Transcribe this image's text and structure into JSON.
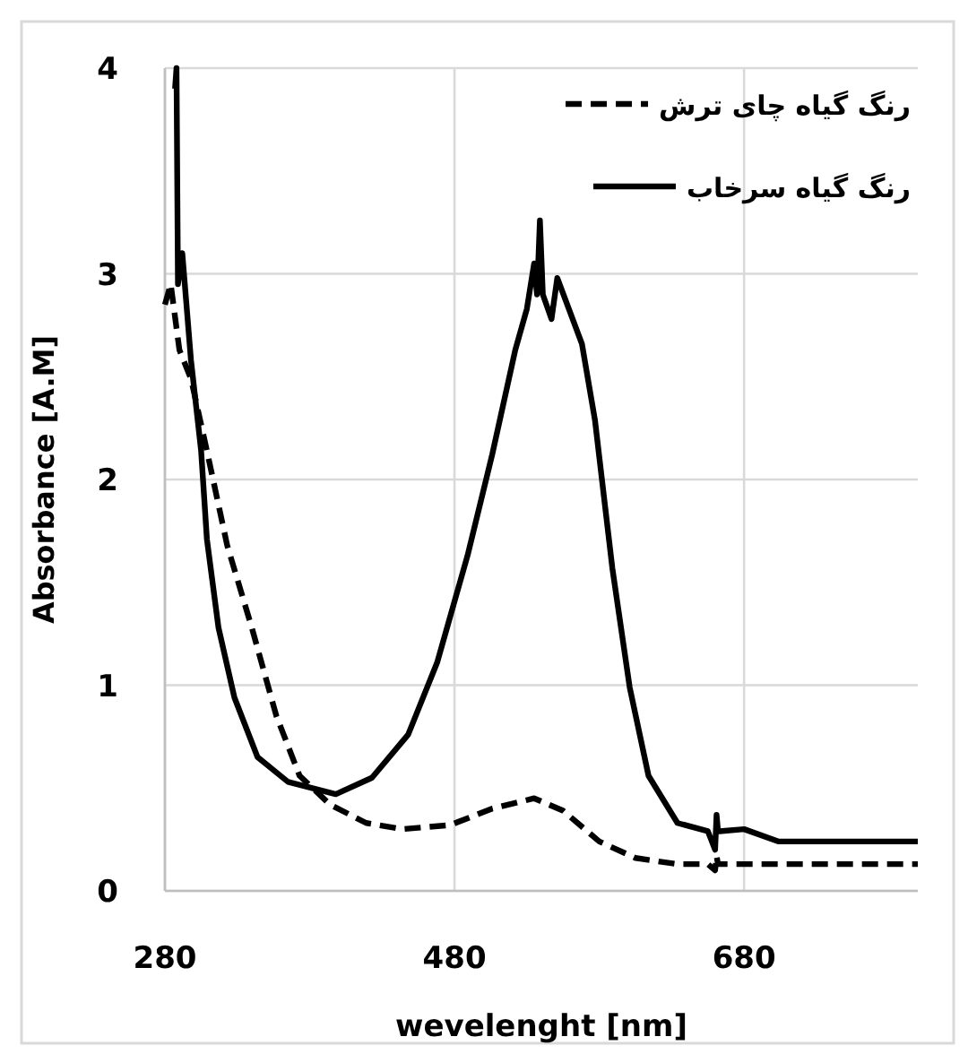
{
  "chart_data": {
    "type": "line",
    "xlabel": "wevelenght [nm]",
    "ylabel": "Absorbance [A.M]",
    "xlim": [
      280,
      800
    ],
    "ylim": [
      0,
      4
    ],
    "xticks": [
      280,
      480,
      680
    ],
    "yticks": [
      0,
      1,
      2,
      3,
      4
    ],
    "grid": true,
    "legend": "top right",
    "series": [
      {
        "name": "رنگ گیاه چای ترش",
        "color": "#000000",
        "line_style": "dashed",
        "x": [
          280,
          284,
          290,
          298,
          309,
          323,
          340,
          357,
          373,
          394,
          419,
          444,
          477,
          506,
          535,
          555,
          580,
          605,
          634,
          655,
          660,
          661,
          662,
          663,
          680,
          800
        ],
        "values": [
          2.85,
          2.95,
          2.63,
          2.49,
          2.14,
          1.68,
          1.28,
          0.85,
          0.56,
          0.42,
          0.33,
          0.3,
          0.32,
          0.4,
          0.45,
          0.39,
          0.24,
          0.16,
          0.13,
          0.13,
          0.1,
          0.17,
          0.13,
          0.13,
          0.13,
          0.13
        ]
      },
      {
        "name": "رنگ گیاه سرخاب",
        "color": "#000000",
        "line_style": "solid",
        "x": [
          287,
          288,
          289,
          292,
          298,
          305,
          309,
          317,
          328,
          344,
          365,
          398,
          423,
          448,
          468,
          489,
          506,
          522,
          530,
          535,
          537,
          539,
          541,
          547,
          551,
          568,
          577,
          589,
          601,
          614,
          634,
          655,
          660,
          661,
          662,
          663,
          680,
          704,
          800
        ],
        "values": [
          3.9,
          4.0,
          2.95,
          3.1,
          2.58,
          2.14,
          1.71,
          1.28,
          0.94,
          0.65,
          0.53,
          0.47,
          0.55,
          0.76,
          1.11,
          1.63,
          2.12,
          2.63,
          2.83,
          3.05,
          2.9,
          3.26,
          2.9,
          2.78,
          2.98,
          2.66,
          2.29,
          1.57,
          0.99,
          0.56,
          0.33,
          0.29,
          0.2,
          0.37,
          0.29,
          0.29,
          0.3,
          0.24,
          0.24
        ]
      }
    ]
  }
}
